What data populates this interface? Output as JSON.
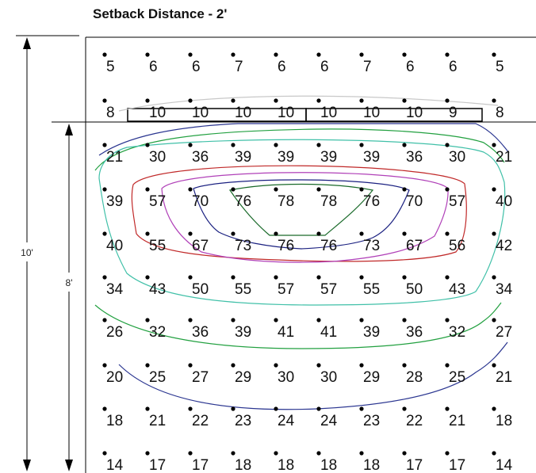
{
  "title": "Setback Distance - 2'",
  "dimensions": {
    "outer": "10'",
    "inner": "8'"
  },
  "grid_values": [
    [
      5,
      6,
      6,
      7,
      6,
      6,
      7,
      6,
      6,
      5
    ],
    [
      8,
      10,
      10,
      10,
      10,
      10,
      10,
      10,
      9,
      8
    ],
    [
      21,
      30,
      36,
      39,
      39,
      39,
      39,
      36,
      30,
      21
    ],
    [
      39,
      57,
      70,
      76,
      78,
      78,
      76,
      70,
      57,
      40
    ],
    [
      40,
      55,
      67,
      73,
      76,
      76,
      73,
      67,
      56,
      42
    ],
    [
      34,
      43,
      50,
      55,
      57,
      57,
      55,
      50,
      43,
      34
    ],
    [
      26,
      32,
      36,
      39,
      41,
      41,
      39,
      36,
      32,
      27
    ],
    [
      20,
      25,
      27,
      29,
      30,
      30,
      29,
      28,
      25,
      21
    ],
    [
      18,
      21,
      22,
      23,
      24,
      24,
      23,
      22,
      21,
      18
    ],
    [
      14,
      17,
      17,
      18,
      18,
      18,
      18,
      17,
      17,
      14
    ]
  ],
  "contour_colors": {
    "gray": "#c8c8c8",
    "blue": "#2a3590",
    "green": "#22a040",
    "teal": "#40c0a8",
    "red": "#c02828",
    "magenta": "#b040b8",
    "navy": "#1a2080",
    "dark_green": "#1a6a2a"
  }
}
